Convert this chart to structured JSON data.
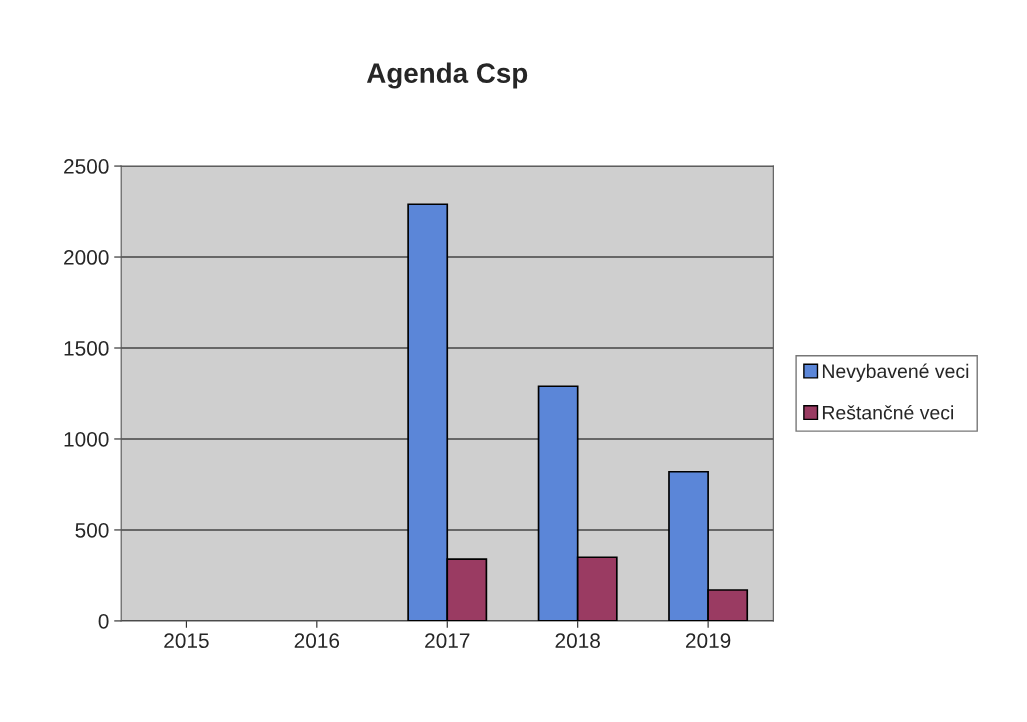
{
  "chart_data": {
    "type": "bar",
    "title": "Agenda Csp",
    "categories": [
      "2015",
      "2016",
      "2017",
      "2018",
      "2019"
    ],
    "series": [
      {
        "name": "Nevybavené veci",
        "color": "#5b86d8",
        "values": [
          null,
          null,
          2290,
          1290,
          820
        ]
      },
      {
        "name": "Reštančné veci",
        "color": "#9a3b62",
        "values": [
          null,
          null,
          340,
          350,
          170
        ]
      }
    ],
    "ylim": [
      0,
      2500
    ],
    "yticks": [
      0,
      500,
      1000,
      1500,
      2000,
      2500
    ],
    "grid": "y",
    "legend": "right"
  }
}
